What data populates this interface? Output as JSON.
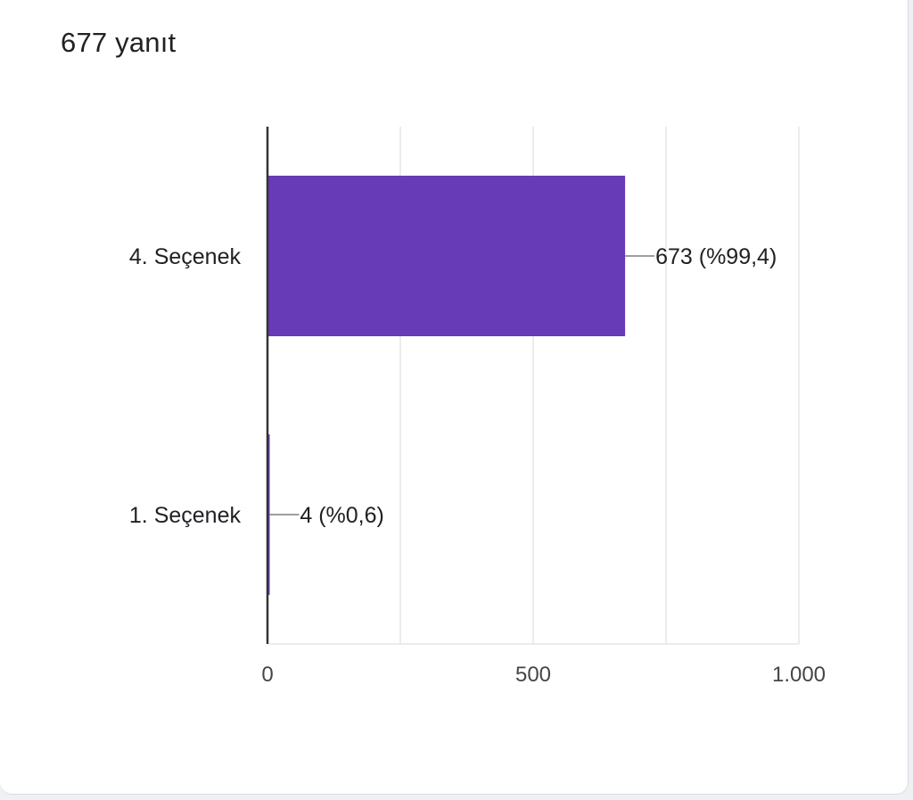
{
  "summary": "677 yanıt",
  "chart_data": {
    "type": "bar",
    "orientation": "horizontal",
    "categories": [
      "4. Seçenek",
      "1. Seçenek"
    ],
    "values": [
      673,
      4
    ],
    "data_labels": [
      "673 (%99,4)",
      "4 (%0,6)"
    ],
    "xlim": [
      0,
      1000
    ],
    "x_ticks": [
      0,
      250,
      500,
      750,
      1000
    ],
    "x_tick_labels": [
      "0",
      "",
      "500",
      "",
      "1.000"
    ],
    "grid": true,
    "bar_color": "#673ab7"
  }
}
